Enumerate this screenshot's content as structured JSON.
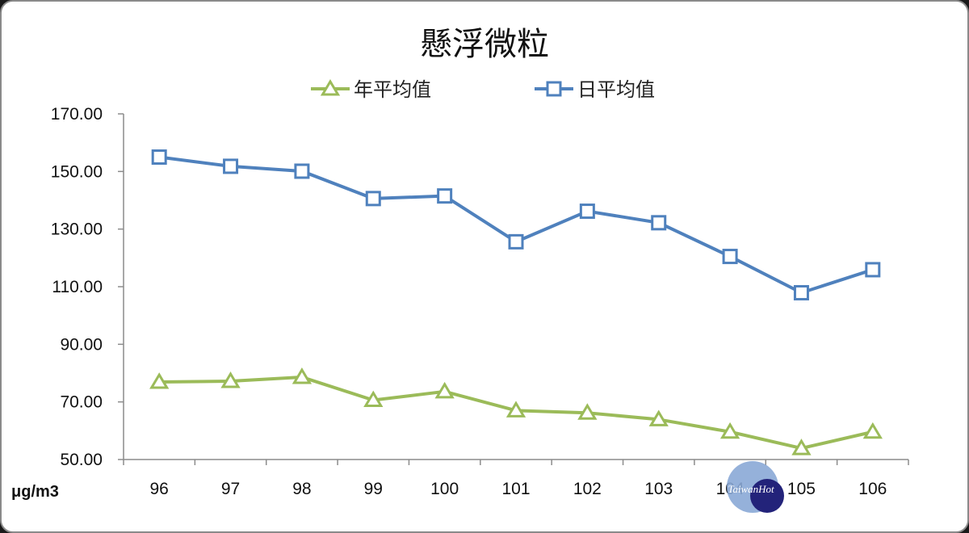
{
  "chart_data": {
    "type": "line",
    "title": "懸浮微粒",
    "ylabel": "μg/m3",
    "xlabel": "",
    "categories": [
      "96",
      "97",
      "98",
      "99",
      "100",
      "101",
      "102",
      "103",
      "104",
      "105",
      "106"
    ],
    "ylim": [
      50,
      170
    ],
    "yticks": [
      "170.00",
      "150.00",
      "130.00",
      "110.00",
      "90.00",
      "70.00",
      "50.00"
    ],
    "grid": false,
    "legend_position": "top",
    "series": [
      {
        "name": "年平均值",
        "marker": "triangle",
        "color": "#9bbb59",
        "values": [
          76.9,
          77.2,
          78.6,
          70.6,
          73.6,
          67.0,
          66.2,
          63.9,
          59.6,
          53.9,
          59.6
        ]
      },
      {
        "name": "日平均值",
        "marker": "square",
        "color": "#4f81bd",
        "values": [
          155.0,
          151.8,
          150.1,
          140.6,
          141.5,
          125.6,
          136.2,
          132.2,
          120.5,
          107.9,
          115.9
        ]
      }
    ]
  },
  "watermark": {
    "text": "TaiwanHot"
  }
}
